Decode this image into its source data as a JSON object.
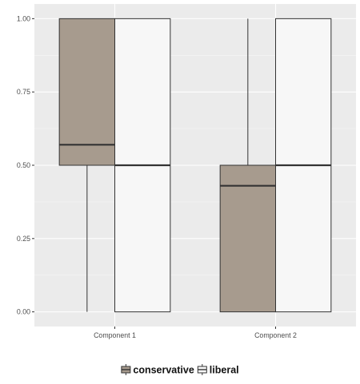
{
  "chart_data": {
    "type": "box",
    "categories": [
      "Component 1",
      "Component 2"
    ],
    "series": [
      {
        "name": "conservative",
        "color": "#a79b8e",
        "boxes": [
          {
            "min": 0.0,
            "q1": 0.5,
            "median": 0.57,
            "q3": 1.0,
            "max": 1.0
          },
          {
            "min": 0.0,
            "q1": 0.0,
            "median": 0.43,
            "q3": 0.5,
            "max": 1.0
          }
        ]
      },
      {
        "name": "liberal",
        "color": "#f7f7f7",
        "boxes": [
          {
            "min": 0.0,
            "q1": 0.0,
            "median": 0.5,
            "q3": 1.0,
            "max": 1.0
          },
          {
            "min": 0.0,
            "q1": 0.0,
            "median": 0.5,
            "q3": 1.0,
            "max": 1.0
          }
        ]
      }
    ],
    "y_ticks": [
      "0.00",
      "0.25",
      "0.50",
      "0.75",
      "1.00"
    ],
    "ylim": [
      -0.05,
      1.05
    ],
    "grid": true,
    "legend_position": "bottom"
  }
}
